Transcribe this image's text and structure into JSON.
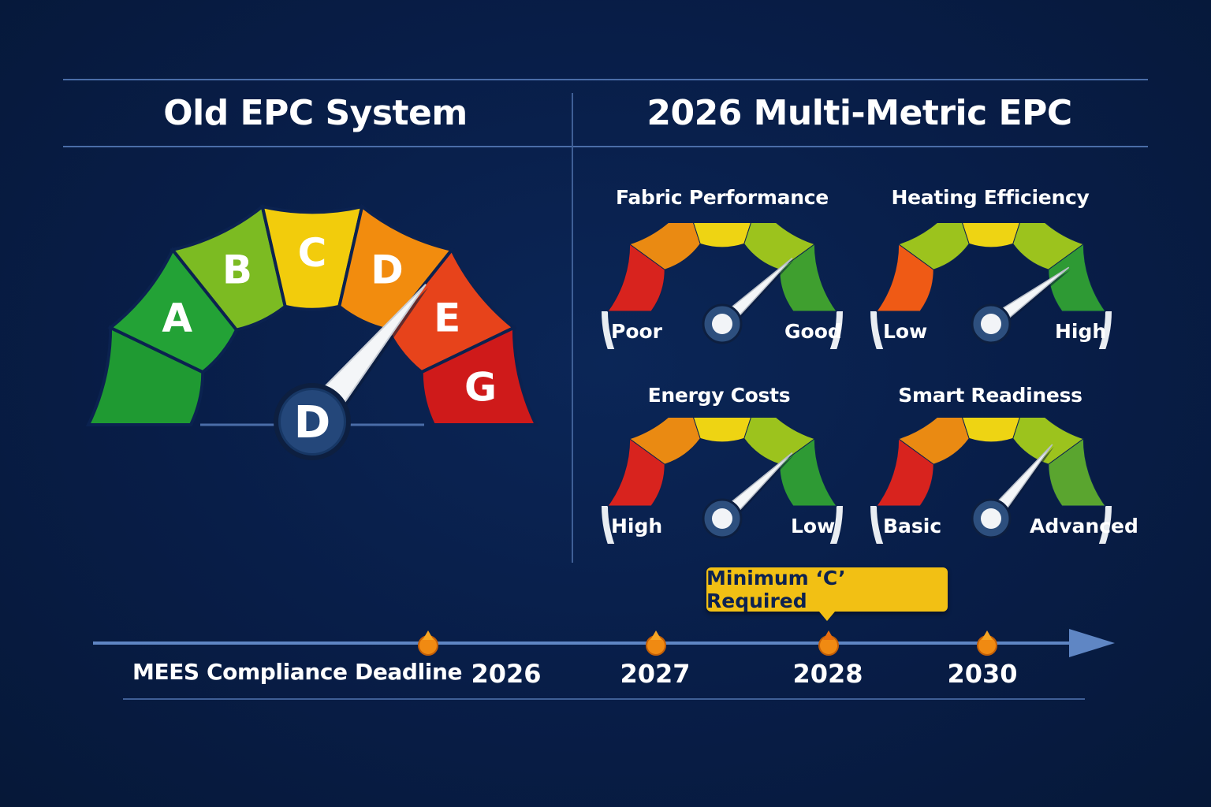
{
  "old_system": {
    "title": "Old EPC System",
    "bands": [
      {
        "letter": "",
        "color": "#1f9a32"
      },
      {
        "letter": "A",
        "color": "#23a236"
      },
      {
        "letter": "B",
        "color": "#7cbb22"
      },
      {
        "letter": "C",
        "color": "#f2cc0c"
      },
      {
        "letter": "D",
        "color": "#f28c0e"
      },
      {
        "letter": "E",
        "color": "#e7431b"
      },
      {
        "letter": "G",
        "color": "#cf1a1a"
      }
    ],
    "current_rating": "D",
    "needle_value": 0.72
  },
  "new_system": {
    "title": "2026 Multi-Metric EPC",
    "gauges": [
      {
        "title": "Fabric Performance",
        "left_label": "Poor",
        "right_label": "Good",
        "value": 0.76,
        "colors": [
          "#d8231e",
          "#ea8a12",
          "#eed413",
          "#9cc31d",
          "#3f9f2f"
        ]
      },
      {
        "title": "Heating Efficiency",
        "left_label": "Low",
        "right_label": "High",
        "value": 0.8,
        "colors": [
          "#ef5a15",
          "#9cc31d",
          "#eed413",
          "#9cc31d",
          "#2e9a34"
        ]
      },
      {
        "title": "Energy Costs",
        "left_label": "High",
        "right_label": "Low",
        "value": 0.76,
        "colors": [
          "#d8231e",
          "#ea8a12",
          "#eed413",
          "#9cc31d",
          "#2e9a34"
        ]
      },
      {
        "title": "Smart Readiness",
        "left_label": "Basic",
        "right_label": "Advanced",
        "value": 0.72,
        "colors": [
          "#d8231e",
          "#ea8a12",
          "#eed413",
          "#9cc31d",
          "#5aa52f"
        ]
      }
    ]
  },
  "timeline": {
    "label": "MEES Compliance Deadline",
    "callout": "Minimum ‘C’ Required",
    "years": [
      {
        "label": "2026",
        "highlight": false
      },
      {
        "label": "2027",
        "highlight": false
      },
      {
        "label": "2028",
        "highlight": true
      },
      {
        "label": "2030",
        "highlight": false
      }
    ],
    "marker_color": "#f08a12",
    "highlight_color": "#f5c21b"
  }
}
